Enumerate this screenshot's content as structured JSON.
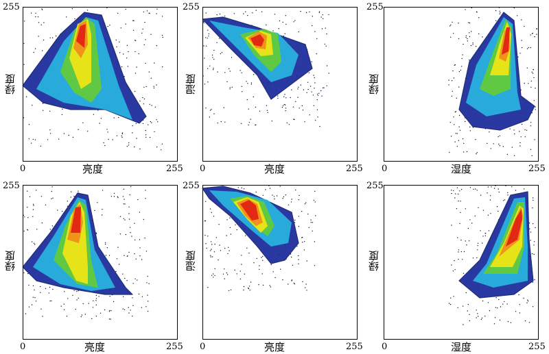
{
  "chart_data": [
    {
      "type": "scatter",
      "xlabel": "亮度",
      "ylabel": "绿度",
      "x_ticks": [
        "0",
        "255"
      ],
      "y_ticks": [
        "255"
      ],
      "xlim": [
        0,
        255
      ],
      "ylim": [
        0,
        255
      ]
    },
    {
      "type": "scatter",
      "xlabel": "亮度",
      "ylabel": "湿度",
      "x_ticks": [
        "0",
        "255"
      ],
      "y_ticks": [
        "255"
      ],
      "xlim": [
        0,
        255
      ],
      "ylim": [
        0,
        255
      ]
    },
    {
      "type": "scatter",
      "xlabel": "湿度",
      "ylabel": "绿度",
      "x_ticks": [
        "0",
        "255"
      ],
      "y_ticks": [
        "255"
      ],
      "xlim": [
        0,
        255
      ],
      "ylim": [
        0,
        255
      ]
    },
    {
      "type": "scatter",
      "xlabel": "亮度",
      "ylabel": "绿度",
      "x_ticks": [
        "0",
        "255"
      ],
      "y_ticks": [
        "255"
      ],
      "xlim": [
        0,
        255
      ],
      "ylim": [
        0,
        255
      ]
    },
    {
      "type": "scatter",
      "xlabel": "亮度",
      "ylabel": "湿度",
      "x_ticks": [
        "0",
        "255"
      ],
      "y_ticks": [
        "255"
      ],
      "xlim": [
        0,
        255
      ],
      "ylim": [
        0,
        255
      ]
    },
    {
      "type": "scatter",
      "xlabel": "湿度",
      "ylabel": "绿度",
      "x_ticks": [
        "0",
        "255"
      ],
      "y_ticks": [
        "255"
      ],
      "xlim": [
        0,
        255
      ],
      "ylim": [
        0,
        255
      ]
    }
  ],
  "colors": {
    "sparse": "#0a0a2a",
    "low": "#1f2f9e",
    "cyan": "#28b8e0",
    "green": "#66cc33",
    "yellow": "#f5e614",
    "orange": "#f08a1c",
    "red": "#e01e14"
  }
}
